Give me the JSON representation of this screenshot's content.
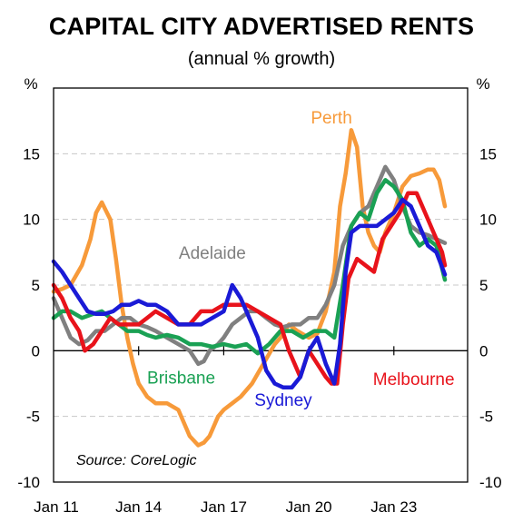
{
  "title": "CAPITAL CITY ADVERTISED RENTS",
  "subtitle": "(annual % growth)",
  "source": "Source: CoreLogic",
  "chart_data": {
    "type": "line",
    "title": "CAPITAL CITY ADVERTISED RENTS",
    "subtitle": "(annual % growth)",
    "y_unit_left": "%",
    "y_unit_right": "%",
    "ylim": [
      -10,
      20
    ],
    "y_ticks": [
      -10,
      -5,
      0,
      5,
      10,
      15
    ],
    "y_tick_labels": [
      "-10",
      "-5",
      "0",
      "5",
      "10",
      "15"
    ],
    "xlim": [
      2011.0,
      2025.6
    ],
    "x_ticks": [
      2011,
      2014,
      2017,
      2020,
      2023
    ],
    "x_tick_labels": [
      "Jan 11",
      "Jan 14",
      "Jan 17",
      "Jan 20",
      "Jan 23"
    ],
    "grid": "horizontal dashed",
    "source": "Source: CoreLogic",
    "series": [
      {
        "name": "Perth",
        "color": "#f79a3a",
        "x": [
          2011.0,
          2011.3,
          2011.6,
          2012.0,
          2012.3,
          2012.5,
          2012.7,
          2013.0,
          2013.2,
          2013.4,
          2013.6,
          2013.8,
          2014.0,
          2014.3,
          2014.6,
          2015.0,
          2015.4,
          2015.8,
          2016.1,
          2016.3,
          2016.5,
          2016.8,
          2017.0,
          2017.3,
          2017.6,
          2018.0,
          2018.4,
          2018.8,
          2019.0,
          2019.3,
          2019.6,
          2020.0,
          2020.3,
          2020.6,
          2020.9,
          2021.1,
          2021.3,
          2021.5,
          2021.7,
          2021.9,
          2022.1,
          2022.3,
          2022.5,
          2022.7,
          2023.0,
          2023.3,
          2023.6,
          2023.9,
          2024.2,
          2024.4,
          2024.6,
          2024.8
        ],
        "y": [
          4.5,
          4.7,
          5.0,
          6.5,
          8.5,
          10.5,
          11.3,
          10.0,
          7.0,
          3.5,
          1.0,
          -1.0,
          -2.5,
          -3.5,
          -4.0,
          -4.0,
          -4.5,
          -6.5,
          -7.2,
          -7.0,
          -6.5,
          -5.0,
          -4.5,
          -4.0,
          -3.5,
          -2.5,
          -1.0,
          0.5,
          1.0,
          2.0,
          1.5,
          1.0,
          1.3,
          3.0,
          6.0,
          11.0,
          13.5,
          16.8,
          15.5,
          11.0,
          9.0,
          8.0,
          7.5,
          9.0,
          10.5,
          12.5,
          13.3,
          13.5,
          13.8,
          13.8,
          13.0,
          11.0
        ]
      },
      {
        "name": "Adelaide",
        "color": "#808080",
        "x": [
          2011.0,
          2011.3,
          2011.6,
          2011.9,
          2012.2,
          2012.5,
          2012.8,
          2013.1,
          2013.4,
          2013.7,
          2014.0,
          2014.3,
          2014.6,
          2015.0,
          2015.4,
          2015.8,
          2016.1,
          2016.3,
          2016.5,
          2016.8,
          2017.0,
          2017.3,
          2017.6,
          2017.9,
          2018.2,
          2018.5,
          2018.8,
          2019.1,
          2019.4,
          2019.7,
          2020.0,
          2020.3,
          2020.6,
          2020.9,
          2021.2,
          2021.5,
          2021.8,
          2022.1,
          2022.4,
          2022.7,
          2023.0,
          2023.3,
          2023.6,
          2023.9,
          2024.2,
          2024.5,
          2024.8
        ],
        "y": [
          4.0,
          2.5,
          1.0,
          0.5,
          0.8,
          1.5,
          1.5,
          2.0,
          2.5,
          2.5,
          2.0,
          1.8,
          1.5,
          1.0,
          0.5,
          0.0,
          -1.0,
          -0.8,
          0.0,
          0.5,
          1.0,
          2.0,
          2.5,
          3.0,
          3.0,
          2.5,
          2.0,
          1.8,
          2.0,
          2.0,
          2.5,
          2.5,
          3.5,
          5.0,
          8.0,
          9.5,
          10.5,
          11.0,
          12.5,
          14.0,
          13.0,
          11.0,
          9.5,
          9.0,
          8.8,
          8.5,
          8.2
        ]
      },
      {
        "name": "Brisbane",
        "color": "#1aa154",
        "x": [
          2011.0,
          2011.3,
          2011.6,
          2012.0,
          2012.4,
          2012.7,
          2013.0,
          2013.3,
          2013.6,
          2014.0,
          2014.3,
          2014.6,
          2015.0,
          2015.4,
          2015.8,
          2016.2,
          2016.6,
          2017.0,
          2017.4,
          2017.8,
          2018.2,
          2018.6,
          2019.0,
          2019.4,
          2019.8,
          2020.2,
          2020.6,
          2020.9,
          2021.2,
          2021.5,
          2021.8,
          2022.1,
          2022.4,
          2022.7,
          2023.0,
          2023.3,
          2023.6,
          2023.9,
          2024.2,
          2024.5,
          2024.8
        ],
        "y": [
          2.5,
          3.0,
          3.0,
          2.5,
          2.8,
          3.0,
          2.5,
          2.0,
          1.5,
          1.5,
          1.2,
          1.0,
          1.2,
          1.0,
          0.5,
          0.5,
          0.3,
          0.5,
          0.3,
          0.5,
          -0.2,
          0.5,
          1.5,
          1.5,
          1.0,
          1.5,
          1.5,
          1.0,
          5.0,
          9.5,
          10.5,
          10.0,
          12.0,
          13.0,
          12.5,
          11.5,
          9.0,
          8.0,
          8.5,
          8.0,
          5.4
        ]
      },
      {
        "name": "Melbourne",
        "color": "#e8131b",
        "x": [
          2011.0,
          2011.3,
          2011.6,
          2011.9,
          2012.1,
          2012.4,
          2012.7,
          2013.0,
          2013.3,
          2013.6,
          2014.0,
          2014.3,
          2014.6,
          2015.0,
          2015.4,
          2015.8,
          2016.2,
          2016.6,
          2017.0,
          2017.4,
          2017.8,
          2018.2,
          2018.6,
          2019.0,
          2019.3,
          2019.5,
          2019.7,
          2020.0,
          2020.3,
          2020.6,
          2020.8,
          2021.0,
          2021.2,
          2021.4,
          2021.7,
          2022.0,
          2022.3,
          2022.6,
          2022.9,
          2023.2,
          2023.5,
          2023.8,
          2024.1,
          2024.4,
          2024.7,
          2024.8
        ],
        "y": [
          5.0,
          4.0,
          2.5,
          1.5,
          0.0,
          0.5,
          1.5,
          2.5,
          2.0,
          2.0,
          2.0,
          2.5,
          3.0,
          2.5,
          2.0,
          2.0,
          3.0,
          3.0,
          3.5,
          3.5,
          3.5,
          3.0,
          2.5,
          2.0,
          0.0,
          -1.0,
          -2.0,
          0.0,
          -1.0,
          -2.0,
          -2.5,
          -2.5,
          2.0,
          5.5,
          7.0,
          6.5,
          6.0,
          8.5,
          9.5,
          10.5,
          12.0,
          12.0,
          10.5,
          9.0,
          7.5,
          6.5
        ]
      },
      {
        "name": "Sydney",
        "color": "#1a1ad6",
        "x": [
          2011.0,
          2011.3,
          2011.6,
          2011.9,
          2012.2,
          2012.5,
          2012.8,
          2013.1,
          2013.4,
          2013.7,
          2014.0,
          2014.3,
          2014.6,
          2015.0,
          2015.4,
          2015.8,
          2016.2,
          2016.6,
          2017.0,
          2017.3,
          2017.6,
          2017.9,
          2018.2,
          2018.5,
          2018.8,
          2019.1,
          2019.4,
          2019.7,
          2020.0,
          2020.3,
          2020.6,
          2020.9,
          2021.1,
          2021.3,
          2021.5,
          2021.8,
          2022.1,
          2022.4,
          2022.7,
          2023.0,
          2023.3,
          2023.6,
          2023.9,
          2024.2,
          2024.5,
          2024.8
        ],
        "y": [
          6.8,
          6.0,
          5.0,
          4.0,
          3.0,
          2.8,
          2.8,
          3.0,
          3.5,
          3.5,
          3.8,
          3.5,
          3.5,
          3.0,
          2.0,
          2.0,
          2.0,
          2.5,
          3.0,
          5.0,
          4.0,
          2.5,
          1.0,
          -1.5,
          -2.5,
          -2.8,
          -2.8,
          -2.0,
          0.0,
          1.0,
          -1.0,
          -2.5,
          0.5,
          6.0,
          9.0,
          9.5,
          9.5,
          9.5,
          10.0,
          10.5,
          11.5,
          11.0,
          9.5,
          8.0,
          7.5,
          5.8
        ]
      }
    ],
    "annotations": [
      {
        "text": "Perth",
        "color": "#f79a3a",
        "at_x": 2020.8,
        "at_y": 17.3
      },
      {
        "text": "Adelaide",
        "color": "#808080",
        "at_x": 2016.6,
        "at_y": 7.0
      },
      {
        "text": "Brisbane",
        "color": "#1aa154",
        "at_x": 2015.5,
        "at_y": -2.5
      },
      {
        "text": "Sydney",
        "color": "#1a1ad6",
        "at_x": 2019.1,
        "at_y": -4.2
      },
      {
        "text": "Melbourne",
        "color": "#e8131b",
        "at_x": 2023.7,
        "at_y": -2.6
      }
    ]
  }
}
